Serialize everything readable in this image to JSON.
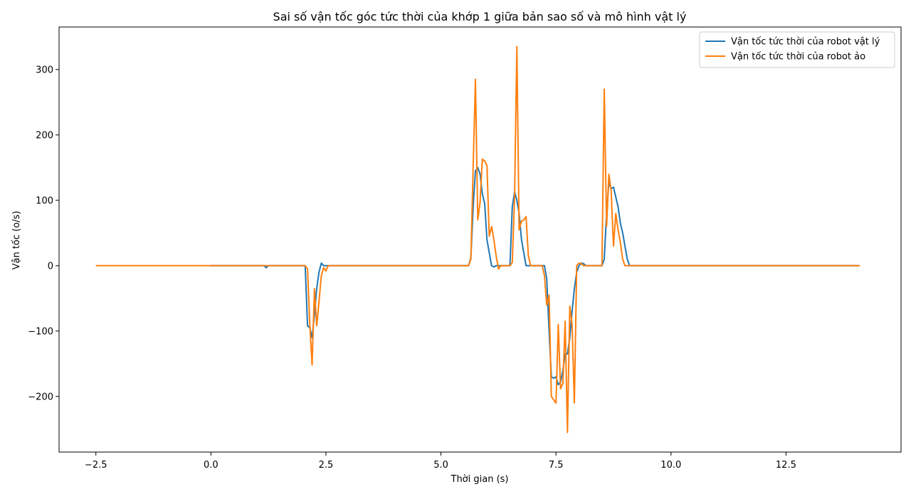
{
  "chart_data": {
    "type": "line",
    "title": "Sai số vận tốc góc tức thời của khớp 1 giữa bản sao số và mô hình vật lý",
    "xlabel": "Thời gian (s)",
    "ylabel": "Vận tốc (o/s)",
    "xlim": [
      -3.3,
      15.0
    ],
    "ylim": [
      -285,
      365
    ],
    "xticks": [
      -2.5,
      0.0,
      2.5,
      5.0,
      7.5,
      10.0,
      12.5
    ],
    "xtick_labels": [
      "−2.5",
      "0.0",
      "2.5",
      "5.0",
      "7.5",
      "10.0",
      "12.5"
    ],
    "yticks": [
      -200,
      -100,
      0,
      100,
      200,
      300
    ],
    "ytick_labels": [
      "−200",
      "−100",
      "0",
      "100",
      "200",
      "300"
    ],
    "grid": false,
    "legend_position": "top-right",
    "series": [
      {
        "name": "Vận tốc tức thời của robot vật lý",
        "color": "#1f77b4",
        "x": [
          0.0,
          1.15,
          1.2,
          1.25,
          2.05,
          2.1,
          2.15,
          2.2,
          2.25,
          2.3,
          2.35,
          2.4,
          2.45,
          2.5,
          5.6,
          5.65,
          5.7,
          5.75,
          5.8,
          5.85,
          5.9,
          5.95,
          6.0,
          6.05,
          6.1,
          6.15,
          6.2,
          6.25,
          6.3,
          6.5,
          6.55,
          6.6,
          6.65,
          6.7,
          6.75,
          6.8,
          6.85,
          6.9,
          6.95,
          7.0,
          7.25,
          7.3,
          7.35,
          7.4,
          7.45,
          7.5,
          7.55,
          7.6,
          7.65,
          7.7,
          7.75,
          7.8,
          7.85,
          7.9,
          7.95,
          8.0,
          8.05,
          8.1,
          8.15,
          8.2,
          8.5,
          8.55,
          8.6,
          8.65,
          8.7,
          8.75,
          8.8,
          8.85,
          8.9,
          8.95,
          9.0,
          9.05,
          9.1,
          9.15,
          9.2,
          9.25,
          14.1
        ],
        "y": [
          0,
          0,
          -3,
          0,
          0,
          -92,
          -95,
          -110,
          -75,
          -35,
          -10,
          4,
          0,
          0,
          0,
          12,
          90,
          145,
          150,
          140,
          110,
          95,
          40,
          20,
          0,
          -2,
          0,
          0,
          0,
          0,
          90,
          113,
          100,
          80,
          40,
          20,
          0,
          0,
          0,
          0,
          0,
          -20,
          -100,
          -170,
          -172,
          -170,
          -182,
          -178,
          -160,
          -135,
          -135,
          -110,
          -70,
          -35,
          -10,
          0,
          4,
          3,
          0,
          0,
          0,
          10,
          80,
          127,
          118,
          120,
          105,
          90,
          65,
          50,
          30,
          10,
          0,
          0,
          0,
          0,
          0
        ]
      },
      {
        "name": "Vận tốc tức thời của robot ảo",
        "color": "#ff7f0e",
        "x": [
          -2.5,
          2.05,
          2.1,
          2.15,
          2.2,
          2.25,
          2.3,
          2.35,
          2.4,
          2.45,
          2.5,
          2.55,
          5.6,
          5.65,
          5.7,
          5.75,
          5.8,
          5.85,
          5.9,
          5.95,
          6.0,
          6.05,
          6.1,
          6.15,
          6.2,
          6.25,
          6.3,
          6.5,
          6.55,
          6.6,
          6.65,
          6.7,
          6.75,
          6.8,
          6.85,
          6.9,
          6.95,
          7.0,
          7.2,
          7.25,
          7.3,
          7.35,
          7.4,
          7.45,
          7.5,
          7.55,
          7.6,
          7.65,
          7.7,
          7.75,
          7.8,
          7.85,
          7.9,
          7.95,
          8.0,
          8.05,
          8.1,
          8.15,
          8.2,
          8.5,
          8.55,
          8.6,
          8.65,
          8.7,
          8.75,
          8.8,
          8.85,
          8.9,
          8.95,
          9.0,
          9.05,
          9.1,
          9.15,
          9.2,
          14.1
        ],
        "y": [
          0,
          0,
          -5,
          -90,
          -152,
          -35,
          -92,
          -55,
          -15,
          -3,
          -8,
          0,
          0,
          10,
          150,
          285,
          70,
          97,
          163,
          160,
          153,
          45,
          60,
          40,
          15,
          -5,
          0,
          0,
          5,
          105,
          335,
          55,
          68,
          70,
          75,
          15,
          0,
          0,
          0,
          -15,
          -60,
          -45,
          -200,
          -205,
          -210,
          -90,
          -188,
          -180,
          -85,
          -255,
          -62,
          -90,
          -210,
          0,
          4,
          3,
          0,
          0,
          0,
          0,
          270,
          60,
          140,
          115,
          30,
          80,
          55,
          35,
          10,
          0,
          0,
          0,
          0,
          0,
          0
        ]
      }
    ]
  }
}
